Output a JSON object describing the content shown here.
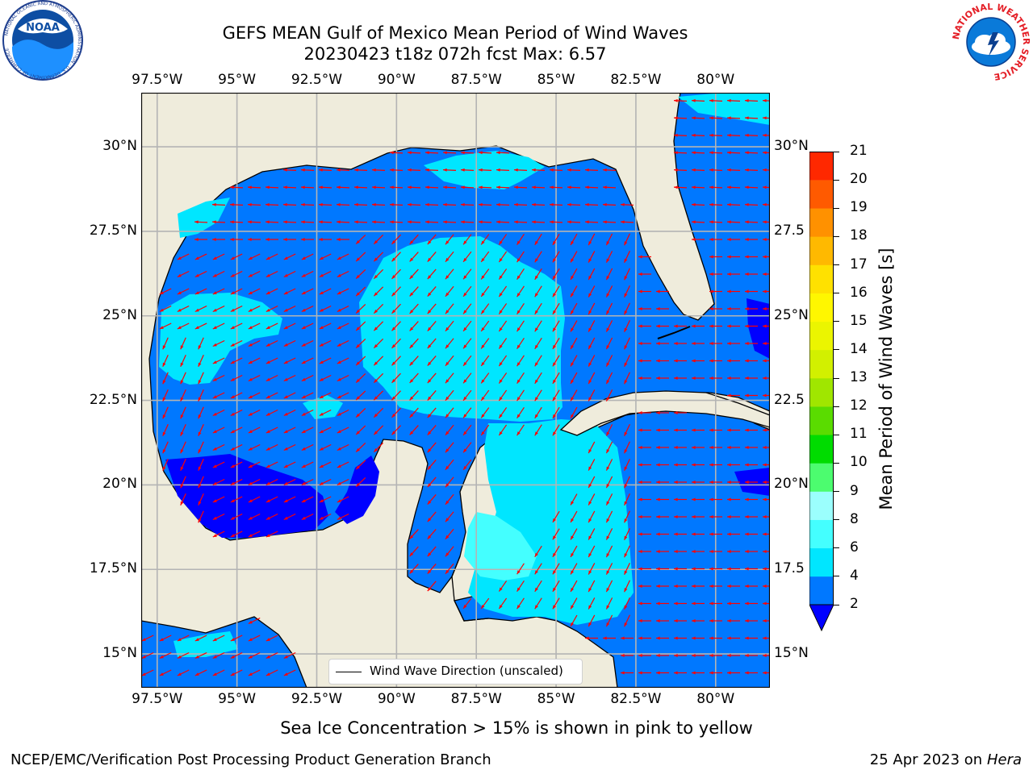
{
  "header": {
    "title_line1": "GEFS MEAN Gulf of Mexico Mean Period of Wind Waves",
    "title_line2": "20230423 t18z 072h fcst   Max: 6.57"
  },
  "logos": {
    "left": {
      "name": "noaa-logo",
      "text": "NOAA",
      "ring_text": "NATIONAL OCEANIC AND ATMOSPHERIC ADMINISTRATION · U.S. DEPARTMENT OF COMMERCE"
    },
    "right": {
      "name": "nws-logo",
      "ring_text": "NATIONAL WEATHER SERVICE"
    }
  },
  "map": {
    "lon_ticks": [
      "97.5°W",
      "95°W",
      "92.5°W",
      "90°W",
      "87.5°W",
      "85°W",
      "82.5°W",
      "80°W"
    ],
    "lon_values": [
      -97.5,
      -95,
      -92.5,
      -90,
      -87.5,
      -85,
      -82.5,
      -80
    ],
    "lat_ticks_left": [
      "30°N",
      "27.5°N",
      "25°N",
      "22.5°N",
      "20°N",
      "17.5°N",
      "15°N"
    ],
    "lat_ticks_right": [
      "30°N",
      "27.5",
      "25°N",
      "22.5",
      "20°N",
      "17.5",
      "15°N"
    ],
    "lat_values": [
      30,
      27.5,
      25,
      22.5,
      20,
      17.5,
      15
    ],
    "extent": {
      "lon_min": -98,
      "lon_max": -78.3,
      "lat_min": 14,
      "lat_max": 31.6
    },
    "colors": {
      "land": "#efecdc",
      "coast": "#000000",
      "grid": "#b4b4b4",
      "arrow": "#ff0000"
    },
    "legend": {
      "text": "Wind Wave Direction (unscaled)"
    }
  },
  "colorbar": {
    "label": "Mean Period of Wind Waves [s]",
    "levels": [
      "2",
      "4",
      "6",
      "8",
      "9",
      "10",
      "11",
      "12",
      "13",
      "14",
      "15",
      "16",
      "17",
      "18",
      "19",
      "20",
      "21"
    ],
    "colors": [
      "#0078ff",
      "#00e6ff",
      "#44ffff",
      "#9bfffd",
      "#4cfc6f",
      "#00dc00",
      "#5adc00",
      "#a0e600",
      "#d2f000",
      "#ebf500",
      "#fff700",
      "#ffe100",
      "#ffb900",
      "#ff9100",
      "#ff5a00",
      "#ff2800"
    ],
    "under_color": "#0000ff"
  },
  "footer": {
    "caption": "Sea Ice Concentration > 15% is shown in pink to yellow",
    "left": "NCEP/EMC/Verification Post Processing Product Generation Branch",
    "right_prefix": "25 Apr 2023 on ",
    "right_italic": "Hera"
  }
}
